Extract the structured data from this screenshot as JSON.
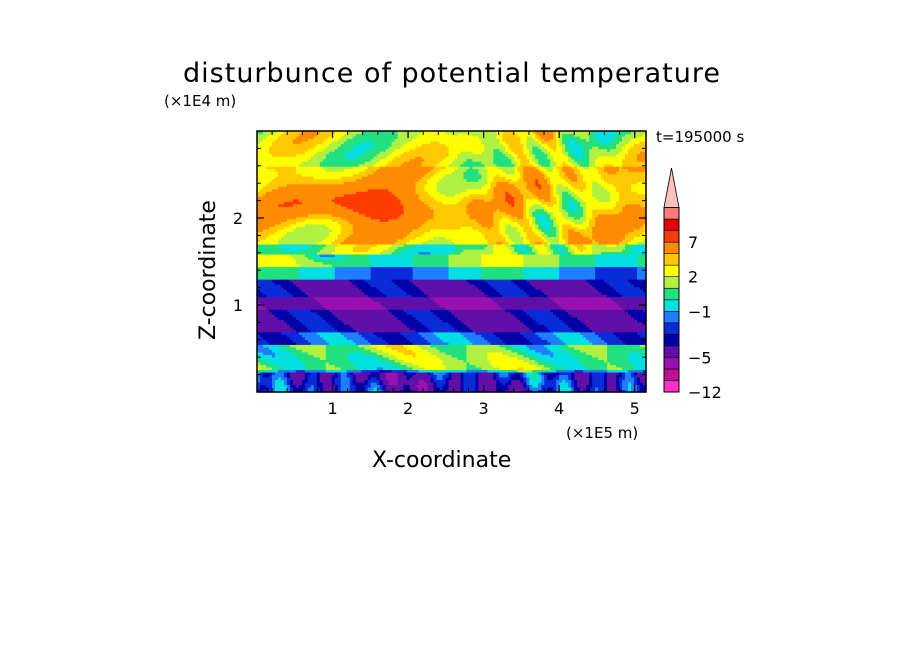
{
  "chart_data": {
    "type": "heatmap",
    "title": "disturbunce of potential temperature",
    "xlabel": "X-coordinate",
    "ylabel": "Z-coordinate",
    "x_unit_label": "(×1E5 m)",
    "y_unit_label": "(×1E4 m)",
    "annotation": "t=195000 s",
    "xlim": [
      0,
      5.15
    ],
    "ylim": [
      0,
      3.0
    ],
    "x_ticks": [
      "1",
      "2",
      "3",
      "4",
      "5"
    ],
    "x_tick_values": [
      1,
      2,
      3,
      4,
      5
    ],
    "y_ticks": [
      "1",
      "2"
    ],
    "y_tick_values": [
      1,
      2
    ],
    "colorbar": {
      "tick_labels": [
        "7",
        "2",
        "−1",
        "−5",
        "−12"
      ],
      "tick_values": [
        7,
        2,
        -1,
        -5,
        -12
      ],
      "levels": [
        -12,
        -9,
        -7,
        -5,
        -4,
        -3,
        -2,
        -1,
        0,
        1,
        2,
        3,
        5,
        7,
        9,
        11
      ],
      "colors": [
        "#ff30c8",
        "#c0109a",
        "#9a10b0",
        "#6010a8",
        "#0000a8",
        "#0a2cd8",
        "#1e7eff",
        "#00e0e0",
        "#20e080",
        "#b0f040",
        "#ffff00",
        "#ffc800",
        "#ff8c00",
        "#ff3c00",
        "#e80000",
        "#ff7c7c",
        "#ffc0c0"
      ],
      "extend": "max"
    },
    "field_description_levels": {
      "bands_z": [
        {
          "z": [
            0.0,
            0.25
          ],
          "value": -2
        },
        {
          "z": [
            0.25,
            0.55
          ],
          "value": 0
        },
        {
          "z": [
            0.55,
            0.7
          ],
          "value": -3
        },
        {
          "z": [
            0.7,
            0.95
          ],
          "value": -5
        },
        {
          "z": [
            0.95,
            1.1
          ],
          "value": -7
        },
        {
          "z": [
            1.1,
            1.3
          ],
          "value": -5
        },
        {
          "z": [
            1.3,
            1.45
          ],
          "value": -2
        },
        {
          "z": [
            1.45,
            1.7
          ],
          "value": 0
        },
        {
          "z": [
            1.7,
            2.6
          ],
          "value": 2
        },
        {
          "z": [
            2.6,
            3.0
          ],
          "value": 1
        }
      ]
    }
  }
}
